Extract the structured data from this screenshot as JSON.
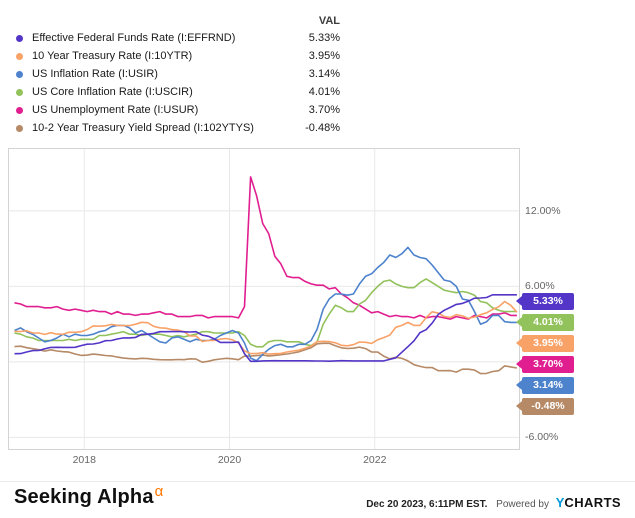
{
  "legend": {
    "val_header": "VAL",
    "items": [
      {
        "label": "Effective Federal Funds Rate (I:EFFRND)",
        "value": "5.33%",
        "color": "#5335c7"
      },
      {
        "label": "10 Year Treasury Rate (I:10YTR)",
        "value": "3.95%",
        "color": "#f9a268"
      },
      {
        "label": "US Inflation Rate (I:USIR)",
        "value": "3.14%",
        "color": "#4d82cc"
      },
      {
        "label": "US Core Inflation Rate (I:USCIR)",
        "value": "4.01%",
        "color": "#92c25c"
      },
      {
        "label": "US Unemployment Rate (I:USUR)",
        "value": "3.70%",
        "color": "#e01e90"
      },
      {
        "label": "10-2 Year Treasury Yield Spread (I:102YTYS)",
        "value": "-0.48%",
        "color": "#b68a66"
      }
    ]
  },
  "chart_data": {
    "type": "line",
    "title": "",
    "x_unit": "year",
    "x_start": 2017.04,
    "x_step": 0.0833333,
    "xlim": [
      2016.95,
      2024.0
    ],
    "ylim": [
      -7,
      17
    ],
    "y_gridlines": [
      -6,
      0,
      6,
      12
    ],
    "y_tick_labels": [
      {
        "value": 12,
        "label": "12.00%"
      },
      {
        "value": 6,
        "label": "6.00%"
      },
      {
        "value": -6,
        "label": "-6.00%"
      }
    ],
    "x_ticks": [
      2018,
      2020,
      2022
    ],
    "x_tick_labels": [
      "2018",
      "2020",
      "2022"
    ],
    "grid": true,
    "legend_position": "top-left",
    "y_axis_side": "right",
    "series": [
      {
        "name": "Effective Federal Funds Rate (I:EFFRND)",
        "color": "#5335c7",
        "last_value_label": "5.33%",
        "values": [
          0.65,
          0.66,
          0.79,
          0.9,
          0.91,
          1.04,
          1.15,
          1.16,
          1.15,
          1.15,
          1.16,
          1.3,
          1.41,
          1.42,
          1.51,
          1.69,
          1.7,
          1.82,
          1.91,
          1.91,
          1.95,
          2.19,
          2.2,
          2.27,
          2.4,
          2.4,
          2.41,
          2.42,
          2.39,
          2.38,
          2.4,
          2.13,
          2.04,
          1.83,
          1.55,
          1.55,
          1.55,
          1.58,
          0.65,
          0.05,
          0.05,
          0.08,
          0.09,
          0.1,
          0.09,
          0.09,
          0.09,
          0.09,
          0.09,
          0.08,
          0.07,
          0.07,
          0.06,
          0.08,
          0.1,
          0.09,
          0.08,
          0.08,
          0.08,
          0.08,
          0.08,
          0.08,
          0.2,
          0.33,
          0.77,
          1.21,
          1.68,
          2.33,
          2.56,
          3.08,
          3.78,
          4.1,
          4.33,
          4.57,
          4.65,
          4.83,
          5.06,
          5.08,
          5.12,
          5.33,
          5.33,
          5.33,
          5.33,
          5.33
        ]
      },
      {
        "name": "10 Year Treasury Rate (I:10YTR)",
        "color": "#f9a268",
        "last_value_label": "3.95%",
        "values": [
          2.43,
          2.42,
          2.48,
          2.3,
          2.3,
          2.19,
          2.32,
          2.21,
          2.2,
          2.36,
          2.35,
          2.4,
          2.58,
          2.86,
          2.84,
          2.87,
          2.98,
          2.91,
          2.89,
          2.89,
          3.0,
          3.15,
          3.12,
          2.83,
          2.71,
          2.68,
          2.57,
          2.53,
          2.4,
          2.07,
          2.06,
          1.63,
          1.7,
          1.71,
          1.81,
          1.86,
          1.76,
          1.5,
          0.87,
          0.66,
          0.67,
          0.73,
          0.62,
          0.65,
          0.68,
          0.79,
          0.87,
          0.93,
          1.08,
          1.26,
          1.61,
          1.64,
          1.62,
          1.52,
          1.32,
          1.28,
          1.37,
          1.58,
          1.56,
          1.47,
          1.76,
          1.93,
          2.13,
          2.75,
          2.9,
          3.14,
          2.9,
          2.9,
          3.52,
          3.98,
          3.89,
          3.62,
          3.53,
          3.75,
          3.66,
          3.46,
          3.57,
          3.75,
          3.9,
          4.17,
          4.38,
          4.8,
          4.5,
          3.95
        ]
      },
      {
        "name": "US Inflation Rate (I:USIR)",
        "color": "#4d82cc",
        "last_value_label": "3.14%",
        "values": [
          2.5,
          2.7,
          2.4,
          2.2,
          1.9,
          1.6,
          1.7,
          1.9,
          2.2,
          2.0,
          2.2,
          2.1,
          2.1,
          2.2,
          2.4,
          2.5,
          2.8,
          2.9,
          2.9,
          2.7,
          2.3,
          2.5,
          2.2,
          1.9,
          1.6,
          1.5,
          1.9,
          2.0,
          1.8,
          1.6,
          1.8,
          1.7,
          1.7,
          1.8,
          2.1,
          2.3,
          2.5,
          2.3,
          1.5,
          0.3,
          0.1,
          0.6,
          1.0,
          1.3,
          1.4,
          1.2,
          1.2,
          1.4,
          1.4,
          1.7,
          2.6,
          4.2,
          5.0,
          5.4,
          5.4,
          5.3,
          5.4,
          6.2,
          6.8,
          7.0,
          7.5,
          7.9,
          8.5,
          8.3,
          8.6,
          9.1,
          8.5,
          8.3,
          8.2,
          7.7,
          7.1,
          6.5,
          6.4,
          6.0,
          5.0,
          4.9,
          4.0,
          3.0,
          3.2,
          3.7,
          3.7,
          3.2,
          3.14,
          3.14
        ]
      },
      {
        "name": "US Core Inflation Rate (I:USCIR)",
        "color": "#92c25c",
        "last_value_label": "4.01%",
        "values": [
          2.3,
          2.2,
          2.0,
          1.9,
          1.7,
          1.7,
          1.7,
          1.7,
          1.7,
          1.8,
          1.7,
          1.8,
          1.8,
          1.8,
          2.1,
          2.1,
          2.2,
          2.3,
          2.4,
          2.2,
          2.2,
          2.1,
          2.2,
          2.2,
          2.2,
          2.1,
          2.0,
          2.1,
          2.0,
          2.1,
          2.2,
          2.4,
          2.4,
          2.3,
          2.3,
          2.3,
          2.3,
          2.4,
          2.1,
          1.4,
          1.2,
          1.2,
          1.6,
          1.7,
          1.7,
          1.6,
          1.6,
          1.6,
          1.4,
          1.3,
          1.6,
          3.0,
          3.8,
          4.5,
          4.3,
          4.0,
          4.0,
          4.6,
          4.9,
          5.5,
          6.0,
          6.4,
          6.5,
          6.2,
          6.0,
          5.9,
          5.9,
          6.3,
          6.6,
          6.3,
          6.0,
          5.7,
          5.6,
          5.5,
          5.6,
          5.5,
          5.3,
          4.8,
          4.7,
          4.3,
          4.1,
          4.0,
          4.01,
          4.01
        ]
      },
      {
        "name": "US Unemployment Rate (I:USUR)",
        "color": "#e01e90",
        "last_value_label": "3.70%",
        "values": [
          4.7,
          4.6,
          4.4,
          4.4,
          4.4,
          4.3,
          4.3,
          4.4,
          4.2,
          4.1,
          4.2,
          4.1,
          4.0,
          4.1,
          4.0,
          4.0,
          3.8,
          4.0,
          3.8,
          3.8,
          3.7,
          3.8,
          3.8,
          3.9,
          4.0,
          3.8,
          3.8,
          3.6,
          3.6,
          3.6,
          3.7,
          3.7,
          3.5,
          3.6,
          3.6,
          3.6,
          3.6,
          3.5,
          4.4,
          14.7,
          13.2,
          11.0,
          10.2,
          8.4,
          7.8,
          6.8,
          6.7,
          6.7,
          6.4,
          6.2,
          6.1,
          6.1,
          5.8,
          5.9,
          5.4,
          5.1,
          4.7,
          4.5,
          4.2,
          3.9,
          4.0,
          3.8,
          3.6,
          3.7,
          3.6,
          3.6,
          3.5,
          3.7,
          3.5,
          3.6,
          3.6,
          3.5,
          3.4,
          3.6,
          3.5,
          3.4,
          3.7,
          3.6,
          3.5,
          3.8,
          3.8,
          3.9,
          3.7,
          3.7
        ]
      },
      {
        "name": "10-2 Year Treasury Yield Spread (I:102YTYS)",
        "color": "#b68a66",
        "last_value_label": "-0.48%",
        "values": [
          1.22,
          1.25,
          1.13,
          1.05,
          0.97,
          0.86,
          0.96,
          0.87,
          0.81,
          0.78,
          0.63,
          0.52,
          0.54,
          0.62,
          0.57,
          0.51,
          0.48,
          0.38,
          0.3,
          0.26,
          0.24,
          0.29,
          0.26,
          0.21,
          0.18,
          0.17,
          0.17,
          0.19,
          0.18,
          0.25,
          0.22,
          -0.02,
          0.05,
          0.17,
          0.23,
          0.29,
          0.25,
          0.18,
          0.47,
          0.46,
          0.5,
          0.54,
          0.48,
          0.52,
          0.57,
          0.63,
          0.71,
          0.8,
          0.96,
          1.13,
          1.44,
          1.48,
          1.48,
          1.28,
          1.12,
          1.07,
          1.09,
          1.18,
          1.06,
          0.79,
          0.78,
          0.46,
          0.25,
          0.37,
          0.28,
          0.08,
          -0.22,
          -0.36,
          -0.45,
          -0.44,
          -0.7,
          -0.7,
          -0.69,
          -0.81,
          -0.58,
          -0.58,
          -0.65,
          -0.93,
          -0.91,
          -0.76,
          -0.7,
          -0.32,
          -0.4,
          -0.48
        ]
      }
    ]
  },
  "badges": [
    {
      "label": "5.33%",
      "color": "#5335c7"
    },
    {
      "label": "4.01%",
      "color": "#92c25c"
    },
    {
      "label": "3.95%",
      "color": "#f9a268"
    },
    {
      "label": "3.70%",
      "color": "#e01e90"
    },
    {
      "label": "3.14%",
      "color": "#4d82cc"
    },
    {
      "label": "-0.48%",
      "color": "#b68a66"
    }
  ],
  "footer": {
    "logo_text": "Seeking Alpha",
    "logo_alpha": "α",
    "timestamp": "Dec 20 2023, 6:11PM EST.",
    "powered_by": "Powered by",
    "ycharts_y": "Y",
    "ycharts_rest": "CHARTS"
  }
}
